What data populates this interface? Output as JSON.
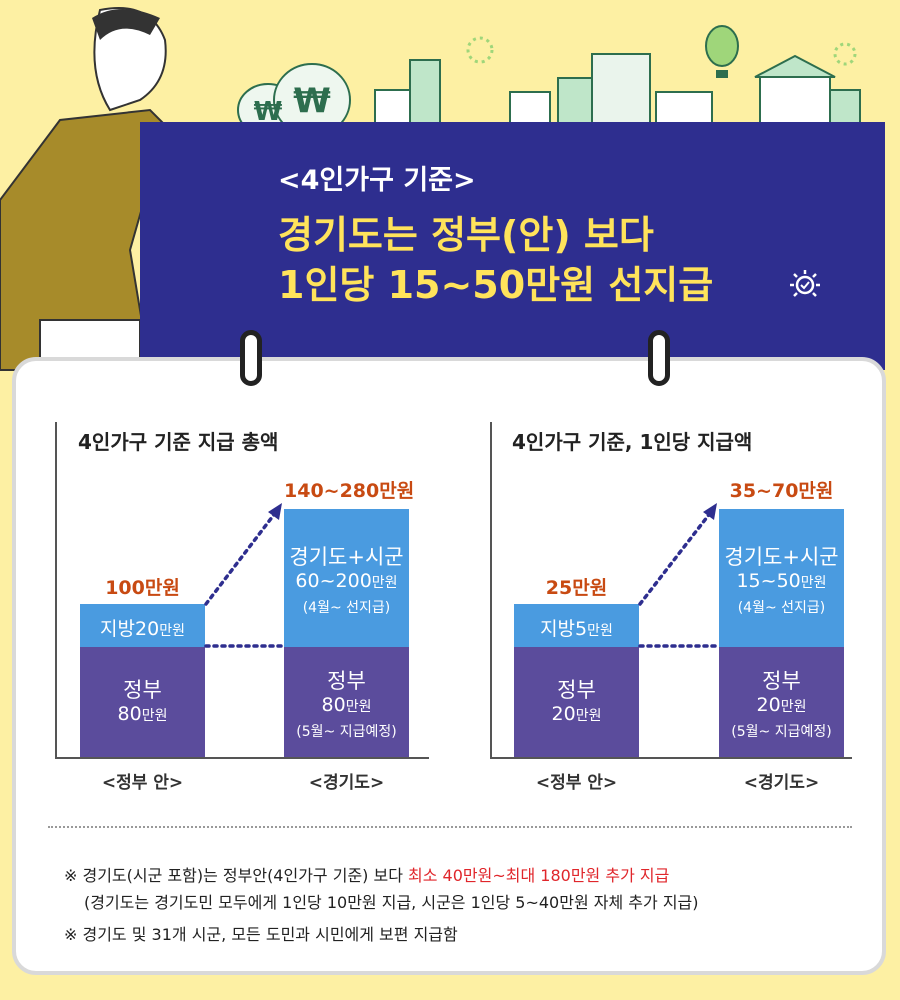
{
  "header": {
    "subtitle": "<4인가구 기준>",
    "title_line1": "경기도는 정부(안) 보다",
    "title_line2": "1인당 15~50만원 선지급"
  },
  "colors": {
    "background": "#fdf0a3",
    "banner": "#2e2e8f",
    "title_yellow": "#ffe35b",
    "gov_bar": "#5b4c9c",
    "local_bar": "#4a9be0",
    "label_orange": "#c84a12",
    "highlight_red": "#e0262b"
  },
  "chart_data": [
    {
      "type": "bar",
      "stacked": true,
      "title": "4인가구 기준 지급 총액",
      "categories": [
        "<정부 안>",
        "<경기도>"
      ],
      "series": [
        {
          "name": "정부",
          "values": [
            80,
            80
          ]
        },
        {
          "name": "지방 / 경기도+시군",
          "values": [
            20,
            [
              60,
              200
            ]
          ]
        }
      ],
      "total_labels": [
        "100만원",
        "140~280만원"
      ],
      "bar_labels": {
        "gov": [
          {
            "name": "정부",
            "value": "80",
            "unit": "만원",
            "note": ""
          },
          {
            "name": "정부",
            "value": "80",
            "unit": "만원",
            "note": "(5월~ 지급예정)"
          }
        ],
        "local": [
          {
            "name": "지방",
            "value": "20",
            "unit": "만원",
            "note": ""
          },
          {
            "name": "경기도+시군",
            "value": "60~200",
            "unit": "만원",
            "note": "(4월~ 선지급)"
          }
        ]
      }
    },
    {
      "type": "bar",
      "stacked": true,
      "title": "4인가구 기준, 1인당 지급액",
      "categories": [
        "<정부 안>",
        "<경기도>"
      ],
      "series": [
        {
          "name": "정부",
          "values": [
            20,
            20
          ]
        },
        {
          "name": "지방 / 경기도+시군",
          "values": [
            5,
            [
              15,
              50
            ]
          ]
        }
      ],
      "total_labels": [
        "25만원",
        "35~70만원"
      ],
      "bar_labels": {
        "gov": [
          {
            "name": "정부",
            "value": "20",
            "unit": "만원",
            "note": ""
          },
          {
            "name": "정부",
            "value": "20",
            "unit": "만원",
            "note": "(5월~ 지급예정)"
          }
        ],
        "local": [
          {
            "name": "지방",
            "value": "5",
            "unit": "만원",
            "note": ""
          },
          {
            "name": "경기도+시군",
            "value": "15~50",
            "unit": "만원",
            "note": "(4월~ 선지급)"
          }
        ]
      }
    }
  ],
  "notes": {
    "line1_prefix": "※ 경기도(시군 포함)는 정부안(4인가구 기준) 보다 ",
    "line1_highlight": "최소 40만원~최대 180만원 추가 지급",
    "line2": "(경기도는 경기도민 모두에게 1인당 10만원 지급, 시군은 1인당 5~40만원 자체 추가 지급)",
    "line3": "※ 경기도 및 31개 시군, 모든 도민과 시민에게 보편 지급함"
  },
  "illustration": {
    "money_bag_symbol": "₩"
  }
}
